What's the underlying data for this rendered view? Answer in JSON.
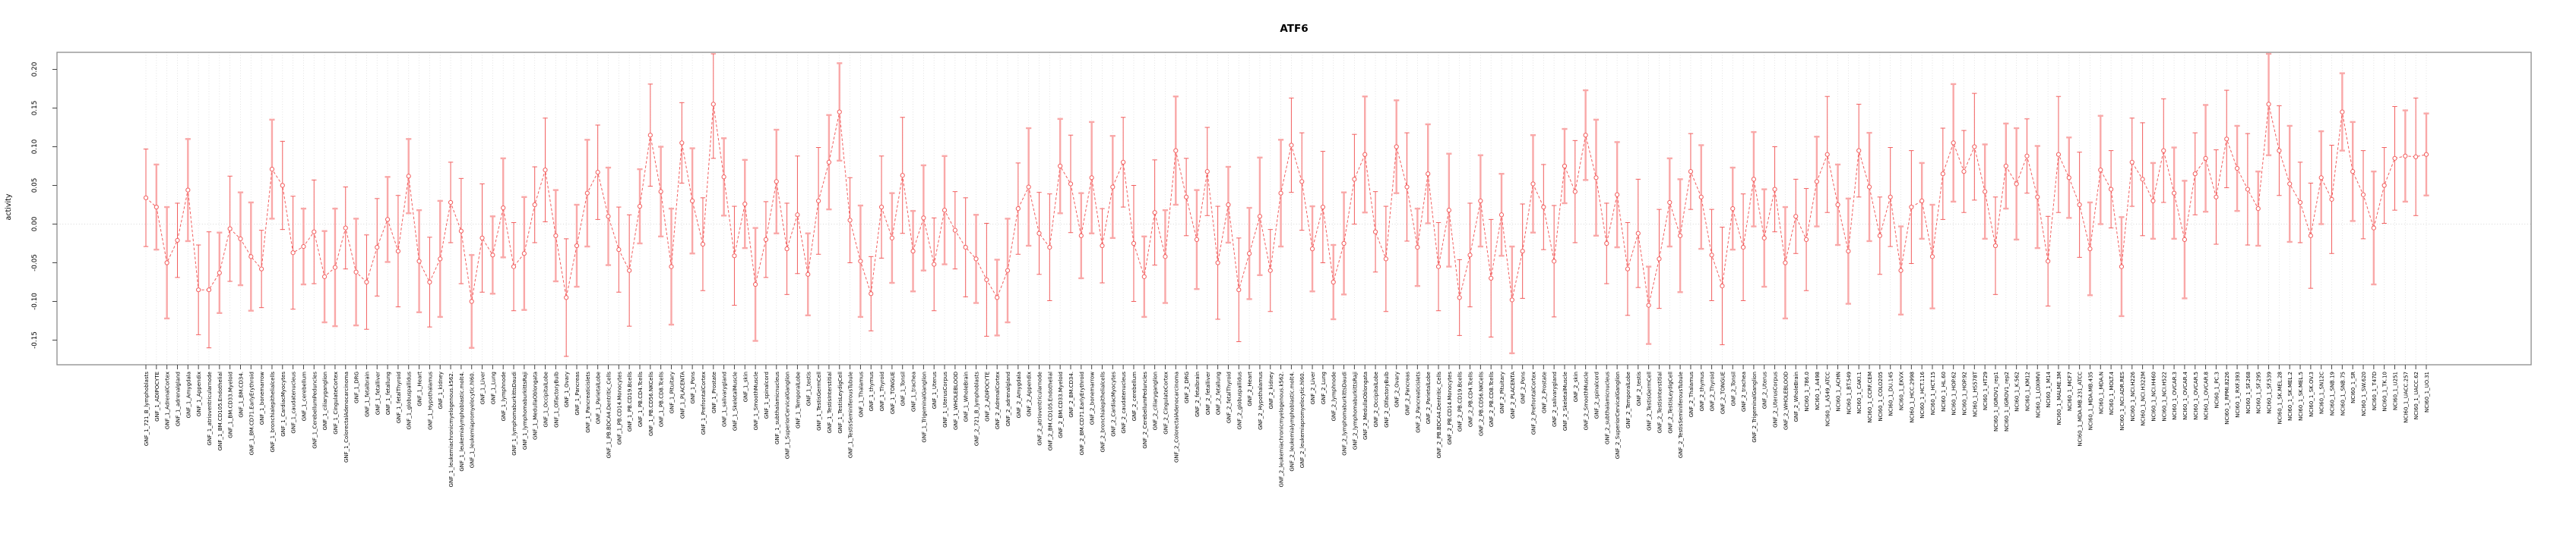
{
  "title": "ATF6",
  "ylabel": "activity",
  "chart_data": {
    "type": "scatter",
    "title": "ATF6",
    "xlabel": "",
    "ylabel": "activity",
    "ylim": [
      -0.18,
      0.225
    ],
    "yticks": [
      0.2,
      0.15,
      0.1,
      0.05,
      0.0,
      -0.05,
      -0.1,
      -0.15
    ],
    "ytick_labels": [
      "0.20",
      "0.15",
      "0.10",
      "0.05",
      "0.00",
      "-0.05",
      "-0.10",
      "-0.15"
    ],
    "grid": "dotted vertical gridline at every category; dotted horizontal line at y=0",
    "legend_position": "none",
    "marker": "open-circle",
    "line_style": "dashed",
    "error_bars": true,
    "colors": {
      "series": "#f25f5f",
      "error_bar_alt": "#f9a8a8",
      "grid": "#dcdcdc",
      "zero_line": "#d8d8d8",
      "box": "#8c8c8c",
      "tick": "#444444",
      "text": "#000000"
    },
    "group_order": [
      {
        "prefix": "GNF_1_",
        "source": "gnf_tissues"
      },
      {
        "prefix": "GNF_2_",
        "source": "gnf_tissues"
      },
      {
        "prefix": "NCI60_1_",
        "source": "nci60_cell_lines"
      }
    ],
    "gnf_tissues": [
      "721_B_lymphoblasts",
      "ADIPOCYTE",
      "AdrenalCortex",
      "adrenalgland",
      "Amygdala",
      "Appendix",
      "atrioventricularnode",
      "BM.CD105.Endothelial",
      "BM.CD33.Myeloid",
      "BM.CD34.",
      "BM.CD71.EarlyErythroid",
      "bonemarrow",
      "bronchialepithelialcells",
      "CardiacMyocytes",
      "caudatenucleus",
      "cerebellum",
      "CerebellumPeduncles",
      "ciliaryganglion",
      "CingulateCortex",
      "ColorectalAdenocarcinoma",
      "DRG",
      "fetalbrain",
      "fetalliver",
      "fetallung",
      "fetalThyroid",
      "globuspallidus",
      "Heart",
      "Hypothalamus",
      "kidney",
      "leukemiachronicmyelogenous.k562.",
      "leukemialymphoblastic.molt4.",
      "leukemiapromyelocytic.hl60.",
      "Liver",
      "Lung",
      "lymphnode",
      "lymphomaburkittsDaudi",
      "lymphomaburkittsRaji",
      "MedullaOblongata",
      "OccipitalLobe",
      "OlfactoryBulb",
      "Ovary",
      "Pancreas",
      "Pancreaticislets",
      "ParietalLobe",
      "PB.BDCA4.Dentritic_Cells",
      "PB.CD14.Monocytes",
      "PB.CD19.Bcells",
      "PB.CD4.Tcells",
      "PB.CD56.NKCells",
      "PB.CD8.Tcells",
      "Pituitary",
      "PLACENTA",
      "Pons",
      "PrefrontalCortex",
      "Prostate",
      "salivarygland",
      "SkeletalMuscle",
      "skin",
      "SmoothMuscle",
      "spinalcord",
      "subthalamicnucleus",
      "SuperiorCervicalGanglion",
      "TemporalLobe",
      "testis",
      "TestisGermCell",
      "TestisInterstitial",
      "TestisLeydigCell",
      "TestisSeminiferousTubule",
      "Thalamus",
      "thymus",
      "Thyroid",
      "TONGUE",
      "Tonsil",
      "trachea",
      "TrigeminalGanglion",
      "Uterus",
      "UterusCorpus",
      "WHOLEBLOOD",
      "WholeBrain"
    ],
    "nci60_cell_lines": [
      "786.0",
      "A498",
      "A549_ATCC",
      "ACHN",
      "BT.549",
      "CAKI.1",
      "CCRF.CEM",
      "COLO205",
      "DU.145",
      "EKVX",
      "HCC.2998",
      "HCT.116",
      "HCT.15",
      "HL.60",
      "HOP.62",
      "HOP.92",
      "HS578T",
      "HT29",
      "IGROV1_rep1",
      "IGROV1_rep2",
      "K.562",
      "KM12",
      "LOXIMVI",
      "M14",
      "MALME.3M",
      "MCF7",
      "MDA.MB.231_ATCC",
      "MDA.MB.435",
      "MDA.N",
      "MOLT.4",
      "NCI.ADR.RES",
      "NCI.H226",
      "NCI.H322M",
      "NCI.H460",
      "NCI.H522",
      "OVCAR.3",
      "OVCAR.4",
      "OVCAR.5",
      "OVCAR.8",
      "PC.3",
      "RPMI.8226",
      "RXF.393",
      "SF.268",
      "SF.295",
      "SF.539",
      "SK.MEL.28",
      "SK.MEL.2",
      "SK.MEL.5",
      "SK.OV.3",
      "SN12C",
      "SNB.19",
      "SNB.75",
      "SR",
      "SW.620",
      "T47D",
      "TK.10",
      "U251",
      "UACC.257",
      "UACC.62",
      "UO.31"
    ],
    "values": [
      0.034,
      0.022,
      -0.05,
      -0.021,
      0.044,
      -0.085,
      -0.085,
      -0.063,
      -0.006,
      -0.019,
      -0.042,
      -0.058,
      0.071,
      0.05,
      -0.037,
      -0.029,
      -0.01,
      -0.068,
      -0.056,
      -0.005,
      -0.062,
      -0.075,
      -0.03,
      0.006,
      -0.035,
      0.062,
      -0.048,
      -0.075,
      -0.045,
      0.028,
      -0.009,
      -0.1,
      -0.018,
      -0.04,
      0.021,
      -0.055,
      -0.038,
      0.025,
      0.07,
      -0.015,
      -0.095,
      -0.028,
      0.04,
      0.067,
      0.01,
      -0.033,
      -0.06,
      0.023,
      0.115,
      0.042,
      -0.055,
      0.105,
      0.03,
      -0.026,
      0.155,
      0.061,
      -0.041,
      0.026,
      -0.078,
      -0.02,
      0.055,
      -0.032,
      0.012,
      -0.065,
      0.03,
      0.08,
      0.145,
      0.005,
      -0.048,
      -0.09,
      0.022,
      -0.018,
      0.063,
      -0.035,
      0.008,
      -0.052,
      0.018,
      -0.008,
      -0.03,
      -0.045,
      -0.072,
      -0.095,
      -0.06,
      0.02,
      0.048,
      -0.012,
      -0.03,
      0.075,
      0.052,
      -0.015,
      0.06,
      -0.028,
      0.048,
      0.08,
      -0.025,
      -0.068,
      0.015,
      -0.042,
      0.095,
      0.035,
      -0.02,
      0.068,
      -0.05,
      0.025,
      -0.085,
      -0.038,
      0.01,
      -0.06,
      0.04,
      0.102,
      0.055,
      -0.032,
      0.022,
      -0.075,
      -0.025,
      0.058,
      0.09,
      -0.01,
      -0.045,
      0.1,
      0.048,
      -0.03,
      0.065,
      -0.055,
      0.018,
      -0.095,
      -0.04,
      0.03,
      -0.07,
      0.012,
      -0.098,
      -0.035,
      0.052,
      0.022,
      -0.048,
      0.075,
      0.042,
      0.115,
      0.06,
      -0.025,
      0.038,
      -0.058,
      -0.012,
      -0.105,
      -0.045,
      0.028,
      -0.015,
      0.068,
      0.035,
      -0.04,
      -0.08,
      0.02,
      -0.03,
      0.058,
      -0.018,
      0.045,
      -0.05,
      0.01,
      -0.02,
      0.055,
      0.09,
      0.025,
      -0.035,
      0.095,
      0.048,
      -0.015,
      0.035,
      -0.06,
      0.022,
      0.03,
      -0.042,
      0.065,
      0.105,
      0.068,
      0.1,
      0.042,
      -0.028,
      0.075,
      0.052,
      0.088,
      0.035,
      -0.048,
      0.09,
      0.06,
      0.025,
      -0.032,
      0.07,
      0.045,
      -0.055,
      0.08,
      0.058,
      0.03,
      0.095,
      0.04,
      -0.02,
      0.065,
      0.085,
      0.035,
      0.11,
      0.072,
      0.045,
      0.02,
      0.155,
      0.095,
      0.052,
      0.028,
      -0.015,
      0.06,
      0.032,
      0.145,
      0.068,
      0.038,
      -0.005,
      0.05,
      0.085,
      0.088,
      0.087,
      0.09
    ],
    "error_halfwidth_cycle": [
      0.063,
      0.055,
      0.072,
      0.048,
      0.066,
      0.058,
      0.075,
      0.052,
      0.068,
      0.06,
      0.07,
      0.05,
      0.064,
      0.057,
      0.073,
      0.049,
      0.067,
      0.059,
      0.076,
      0.053,
      0.069,
      0.061
    ],
    "bar_style_cycle": "01101001",
    "bar_style_legend": {
      "0": "thin capped red error bar",
      "1": "thick pale pink error bar"
    }
  }
}
